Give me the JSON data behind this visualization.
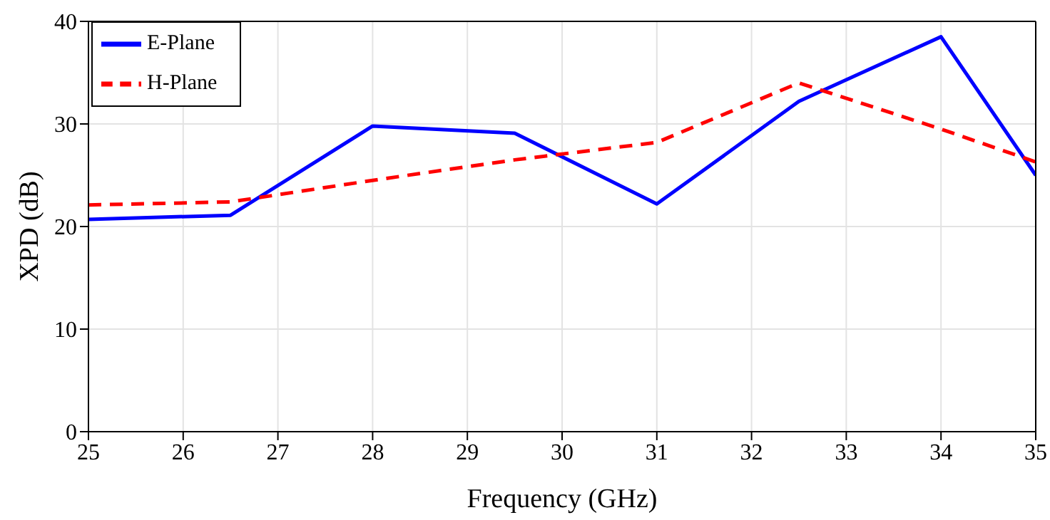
{
  "chart_data": {
    "type": "line",
    "xlabel": "Frequency (GHz)",
    "ylabel": "XPD (dB)",
    "x": [
      25,
      26.5,
      28,
      29.5,
      31,
      32.5,
      34,
      35
    ],
    "series": [
      {
        "name": "E-Plane",
        "color": "#0000ff",
        "line_style": "solid",
        "values": [
          20.7,
          21.1,
          29.8,
          29.1,
          22.2,
          32.2,
          38.5,
          25
        ]
      },
      {
        "name": "H-Plane",
        "color": "#ff0000",
        "line_style": "dashed",
        "values": [
          22.1,
          22.4,
          24.5,
          26.5,
          28.2,
          34,
          29.5,
          26.3
        ]
      }
    ],
    "xlim": [
      25,
      35
    ],
    "xticks": [
      25,
      26,
      27,
      28,
      29,
      30,
      31,
      32,
      33,
      34,
      35
    ],
    "ylim": [
      0,
      40
    ],
    "yticks": [
      0,
      10,
      20,
      30,
      40
    ],
    "grid": true,
    "legend": "top left",
    "marker": "none"
  }
}
